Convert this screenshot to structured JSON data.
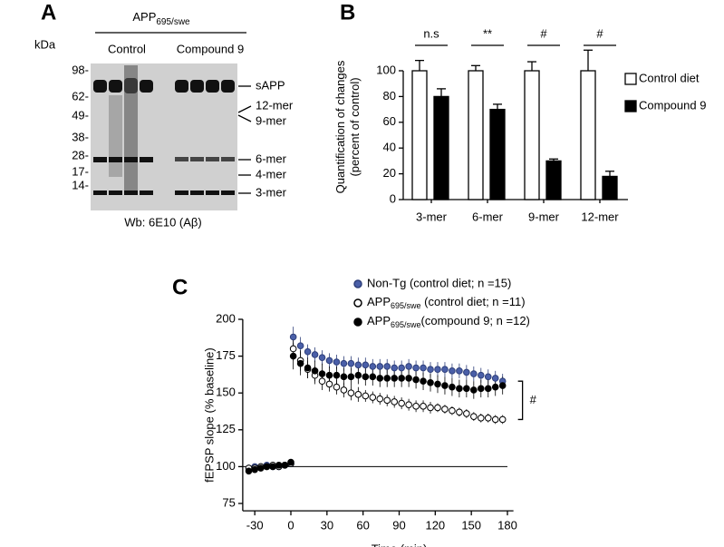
{
  "panel_labels": [
    "A",
    "B",
    "C"
  ],
  "blot": {
    "header": [
      "APP",
      "695/swe"
    ],
    "unit": "kDa",
    "groups": [
      "Control",
      "Compound 9"
    ],
    "markers": [
      "98-",
      "62-",
      "49-",
      "38-",
      "28-",
      "17-",
      "14-"
    ],
    "bands": [
      "sAPP",
      "12-mer",
      "9-mer",
      "6-mer",
      "4-mer",
      "3-mer"
    ],
    "caption": "Wb: 6E10 (Aβ)"
  },
  "chart_data": [
    {
      "type": "bar",
      "ylabel": [
        "Quantification of changes",
        "(percent of control)"
      ],
      "categories": [
        "3-mer",
        "6-mer",
        "9-mer",
        "12-mer"
      ],
      "series": [
        {
          "name": "Control diet",
          "color": "#ffffff",
          "edgecolor": "#000000",
          "values": [
            100,
            100,
            100,
            100
          ],
          "errors": [
            8,
            4,
            7,
            16
          ]
        },
        {
          "name": "Compound 9",
          "color": "#000000",
          "edgecolor": "#000000",
          "values": [
            80,
            70,
            30,
            18
          ],
          "errors": [
            6,
            4,
            1.5,
            4
          ]
        }
      ],
      "significance": [
        "n.s",
        "**",
        "#",
        "#"
      ],
      "ylim": [
        0,
        115
      ],
      "yticks": [
        0,
        20,
        40,
        60,
        80,
        100
      ],
      "legend": "right"
    },
    {
      "type": "scatter",
      "xlabel": "Time (min)",
      "ylabel": "fEPSP slope (% baseline)",
      "x": [
        -35,
        -30,
        -25,
        -20,
        -15,
        -10,
        -5,
        0,
        2,
        8,
        14,
        20,
        26,
        32,
        38,
        44,
        50,
        56,
        62,
        68,
        74,
        80,
        86,
        92,
        98,
        104,
        110,
        116,
        122,
        128,
        134,
        140,
        146,
        152,
        158,
        164,
        170,
        176
      ],
      "series": [
        {
          "name": "Non-Tg (control diet; n =15)",
          "color": "#4a5fa8",
          "edgecolor": "#2e3f7a",
          "values": [
            99,
            100,
            100,
            101,
            100,
            100,
            101,
            102,
            188,
            182,
            178,
            176,
            174,
            172,
            171,
            170,
            170,
            169,
            169,
            168,
            168,
            168,
            167,
            167,
            168,
            167,
            167,
            166,
            166,
            166,
            165,
            165,
            164,
            163,
            162,
            161,
            160,
            158
          ],
          "errors": [
            2,
            2,
            2,
            2,
            2,
            2,
            2,
            2,
            7,
            6,
            5,
            5,
            5,
            5,
            5,
            5,
            5,
            5,
            5,
            5,
            5,
            5,
            5,
            5,
            5,
            5,
            5,
            5,
            5,
            5,
            5,
            5,
            5,
            5,
            5,
            5,
            5,
            5
          ]
        },
        {
          "name": [
            "APP",
            "695/swe",
            " (control diet; n =11)"
          ],
          "color": "#ffffff",
          "edgecolor": "#000000",
          "values": [
            99,
            99,
            100,
            100,
            101,
            100,
            101,
            102,
            180,
            172,
            166,
            162,
            158,
            156,
            154,
            152,
            150,
            149,
            148,
            147,
            146,
            145,
            144,
            143,
            142,
            141,
            141,
            140,
            140,
            139,
            138,
            137,
            136,
            134,
            133,
            133,
            132,
            132
          ],
          "errors": [
            2,
            2,
            2,
            2,
            2,
            2,
            2,
            2,
            8,
            7,
            6,
            6,
            6,
            5,
            5,
            5,
            5,
            5,
            4,
            4,
            4,
            4,
            4,
            4,
            4,
            4,
            4,
            4,
            3,
            3,
            3,
            3,
            3,
            3,
            3,
            3,
            3,
            3
          ]
        },
        {
          "name": [
            "APP",
            "695/swe",
            "(compound 9; n =12)"
          ],
          "color": "#000000",
          "edgecolor": "#000000",
          "values": [
            97,
            98,
            99,
            100,
            100,
            101,
            101,
            103,
            175,
            170,
            167,
            165,
            163,
            162,
            162,
            161,
            161,
            162,
            161,
            161,
            160,
            160,
            160,
            160,
            160,
            159,
            158,
            157,
            156,
            155,
            154,
            153,
            153,
            152,
            153,
            153,
            154,
            155
          ],
          "errors": [
            2,
            2,
            2,
            2,
            2,
            2,
            2,
            2,
            9,
            8,
            7,
            7,
            7,
            6,
            6,
            6,
            6,
            6,
            6,
            6,
            6,
            6,
            6,
            6,
            6,
            6,
            6,
            6,
            6,
            6,
            6,
            6,
            6,
            6,
            6,
            6,
            6,
            6
          ]
        }
      ],
      "hline": 100,
      "bracket_label": "#",
      "xlim": [
        -40,
        185
      ],
      "xticks": [
        -30,
        0,
        30,
        60,
        90,
        120,
        150,
        180
      ],
      "ylim": [
        70,
        200
      ],
      "yticks": [
        75,
        100,
        125,
        150,
        175,
        200
      ],
      "legend": "upper"
    }
  ]
}
